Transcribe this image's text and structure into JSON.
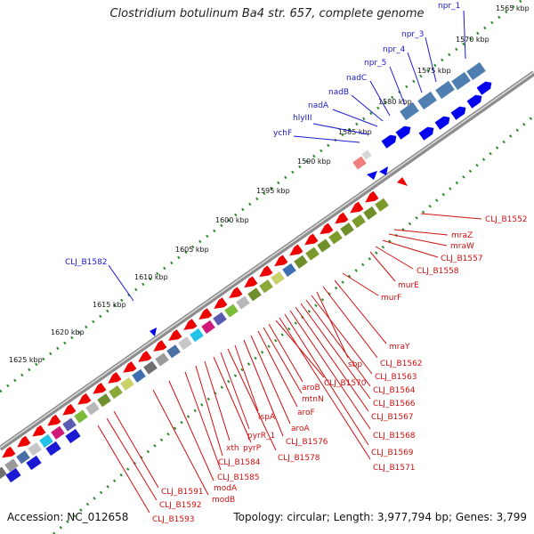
{
  "title": "Clostridium botulinum Ba4 str. 657, complete genome",
  "footer": {
    "accession": "Accession: NC_012658",
    "summary": "Topology: circular; Length: 3,977,794 bp; Genes: 3,799"
  },
  "colors": {
    "forward_gene": "#0000ee",
    "reverse_gene": "#ee0000",
    "forward_label": "#1a1ad2",
    "reverse_label": "#d01010",
    "tick_dots": "#2e8b2e",
    "backbone": "#8c8c8c"
  },
  "kbp_ticks": [
    "1565 kbp",
    "1570 kbp",
    "1575 kbp",
    "1580 kbp",
    "1585 kbp",
    "1590 kbp",
    "1595 kbp",
    "1600 kbp",
    "1605 kbp",
    "1610 kbp",
    "1615 kbp",
    "1620 kbp",
    "1625 kbp"
  ],
  "forward_labels": [
    "npr_1",
    "npr_3",
    "npr_4",
    "npr_5",
    "nadC",
    "nadB",
    "nadA",
    "hlyIII",
    "ychF",
    "CLJ_B1582"
  ],
  "reverse_labels": [
    "CLJ_B1552",
    "mraZ",
    "mraW",
    "CLJ_B1557",
    "CLJ_B1558",
    "murE",
    "murF",
    "mraY",
    "CLJ_B1562",
    "sbp",
    "CLJ_B1563",
    "CLJ_B1564",
    "CLJ_B1566",
    "CLJ_B1567",
    "CLJ_B1568",
    "CLJ_B1569",
    "CLJ_B1571",
    "CLJ_B1570",
    "aroB",
    "mtnN",
    "aroF",
    "aroA",
    "CLJ_B1576",
    "lspA",
    "CLJ_B1578",
    "pyrR_1",
    "pyrP",
    "xth",
    "CLJ_B1584",
    "CLJ_B1585",
    "modA",
    "modB",
    "CLJ_B1591",
    "CLJ_B1592",
    "CLJ_B1593"
  ]
}
